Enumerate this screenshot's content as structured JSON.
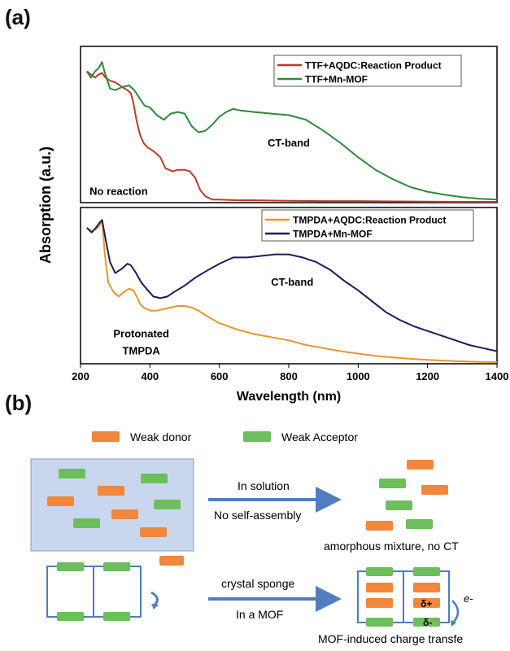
{
  "panel_a_label": "(a)",
  "panel_b_label": "(b)",
  "chart_data": [
    {
      "type": "line",
      "panel": "top",
      "xlim": [
        200,
        1400
      ],
      "series": [
        {
          "name": "TTF+AQDC:Reaction Product",
          "color": "#c0392b",
          "x": [
            218,
            230,
            242,
            252,
            262,
            272,
            285,
            300,
            320,
            335,
            345,
            352,
            362,
            372,
            382,
            395,
            410,
            430,
            445,
            455,
            465,
            480,
            500,
            515,
            530,
            545,
            560,
            580,
            600,
            650,
            700,
            800,
            900,
            1000,
            1100,
            1200,
            1300,
            1400
          ],
          "y": [
            0.84,
            0.82,
            0.8,
            0.82,
            0.83,
            0.8,
            0.78,
            0.77,
            0.74,
            0.72,
            0.7,
            0.64,
            0.52,
            0.43,
            0.38,
            0.35,
            0.33,
            0.29,
            0.22,
            0.21,
            0.2,
            0.21,
            0.21,
            0.2,
            0.16,
            0.08,
            0.04,
            0.02,
            0.02,
            0.015,
            0.015,
            0.012,
            0.01,
            0.01,
            0.008,
            0.006,
            0.005,
            0.005
          ]
        },
        {
          "name": "TTF+Mn-MOF",
          "color": "#2e8b3a",
          "x": [
            218,
            230,
            242,
            252,
            262,
            270,
            285,
            300,
            320,
            340,
            355,
            370,
            385,
            400,
            420,
            440,
            460,
            480,
            500,
            520,
            540,
            560,
            580,
            600,
            620,
            640,
            660,
            700,
            750,
            800,
            850,
            900,
            950,
            1000,
            1050,
            1100,
            1150,
            1200,
            1250,
            1300,
            1350,
            1400
          ],
          "y": [
            0.84,
            0.8,
            0.84,
            0.86,
            0.9,
            0.83,
            0.73,
            0.72,
            0.74,
            0.75,
            0.72,
            0.67,
            0.62,
            0.61,
            0.56,
            0.53,
            0.57,
            0.58,
            0.57,
            0.49,
            0.45,
            0.46,
            0.5,
            0.55,
            0.58,
            0.6,
            0.59,
            0.58,
            0.57,
            0.56,
            0.53,
            0.46,
            0.38,
            0.29,
            0.21,
            0.15,
            0.1,
            0.07,
            0.05,
            0.035,
            0.025,
            0.02
          ]
        }
      ],
      "legend_position": "top-right",
      "annotations": [
        {
          "text": "CT-band",
          "x": 800,
          "y": 0.36
        },
        {
          "text": "No reaction",
          "x": 310,
          "y": 0.05
        }
      ]
    },
    {
      "type": "line",
      "panel": "bottom",
      "xlim": [
        200,
        1400
      ],
      "xlabel": "Wavelength (nm)",
      "ticks": [
        200,
        400,
        600,
        800,
        1000,
        1200,
        1400
      ],
      "series": [
        {
          "name": "TMPDA+AQDC:Reaction Product",
          "color": "#e8962e",
          "x": [
            218,
            232,
            244,
            254,
            262,
            270,
            280,
            295,
            310,
            325,
            340,
            352,
            362,
            372,
            382,
            400,
            420,
            440,
            460,
            480,
            500,
            520,
            540,
            560,
            600,
            650,
            700,
            750,
            800,
            850,
            900,
            950,
            1000,
            1050,
            1100,
            1150,
            1200,
            1250,
            1300,
            1350,
            1400
          ],
          "y": [
            0.87,
            0.85,
            0.86,
            0.88,
            0.92,
            0.7,
            0.52,
            0.46,
            0.43,
            0.46,
            0.48,
            0.47,
            0.43,
            0.38,
            0.36,
            0.34,
            0.34,
            0.35,
            0.36,
            0.37,
            0.37,
            0.36,
            0.34,
            0.31,
            0.26,
            0.22,
            0.19,
            0.17,
            0.15,
            0.12,
            0.1,
            0.08,
            0.065,
            0.05,
            0.04,
            0.032,
            0.025,
            0.02,
            0.015,
            0.012,
            0.01
          ]
        },
        {
          "name": "TMPDA+Mn-MOF",
          "color": "#211a5a",
          "x": [
            218,
            232,
            244,
            254,
            262,
            272,
            285,
            300,
            320,
            335,
            345,
            360,
            375,
            390,
            410,
            430,
            450,
            470,
            500,
            530,
            560,
            600,
            640,
            680,
            720,
            760,
            800,
            840,
            880,
            920,
            960,
            1000,
            1040,
            1080,
            1120,
            1160,
            1200,
            1240,
            1280,
            1320,
            1360,
            1400
          ],
          "y": [
            0.87,
            0.84,
            0.87,
            0.9,
            0.92,
            0.8,
            0.65,
            0.58,
            0.61,
            0.64,
            0.63,
            0.58,
            0.52,
            0.48,
            0.43,
            0.42,
            0.43,
            0.46,
            0.5,
            0.55,
            0.59,
            0.64,
            0.68,
            0.68,
            0.69,
            0.7,
            0.7,
            0.68,
            0.65,
            0.6,
            0.53,
            0.47,
            0.4,
            0.33,
            0.28,
            0.24,
            0.21,
            0.18,
            0.15,
            0.12,
            0.1,
            0.08
          ]
        }
      ],
      "legend_position": "top-right",
      "annotations": [
        {
          "text": "CT-band",
          "x": 810,
          "y": 0.5
        },
        {
          "text": "Protonated",
          "x": 375,
          "y": 0.17
        },
        {
          "text": "TMPDA",
          "x": 375,
          "y": 0.06
        }
      ]
    }
  ],
  "ylabel": "Absorption (a.u.)",
  "scheme": {
    "legend_donor": "Weak donor",
    "legend_acceptor": "Weak Acceptor",
    "donor_color": "#f0873c",
    "acceptor_color": "#6cbf5b",
    "solution_box_color": "#c9d7ee",
    "arrow_color": "#4f7dc0",
    "arrow1_top": "In solution",
    "arrow1_bottom": "No self-assembly",
    "result1": "amorphous mixture, no CT",
    "arrow2_top": "crystal sponge",
    "arrow2_bottom": "In a MOF",
    "result2": "MOF-induced charge transfe",
    "delta_plus": "δ+",
    "delta_minus": "δ-",
    "electron": "e-"
  }
}
